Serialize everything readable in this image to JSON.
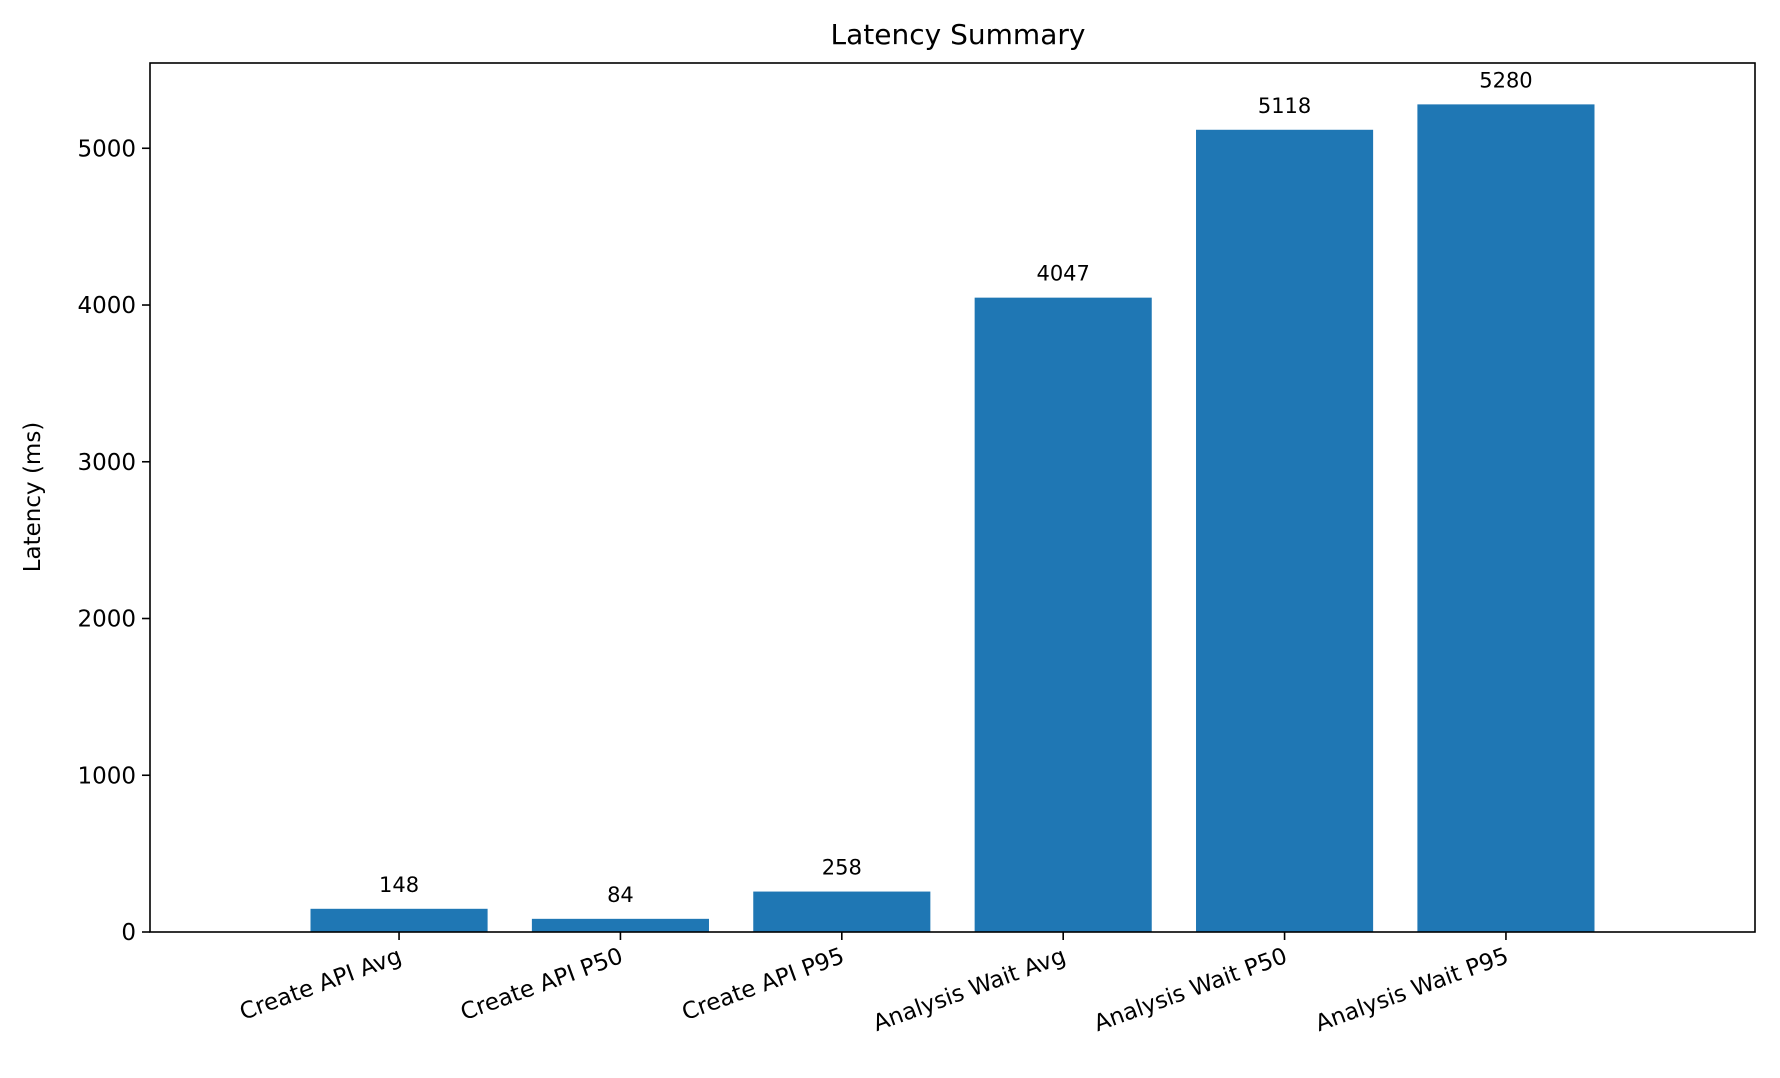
{
  "chart_data": {
    "type": "bar",
    "title": "Latency Summary",
    "xlabel": "",
    "ylabel": "Latency (ms)",
    "categories": [
      "Create API Avg",
      "Create API P50",
      "Create API P95",
      "Analysis Wait Avg",
      "Analysis Wait P50",
      "Analysis Wait P95"
    ],
    "values": [
      148,
      84,
      258,
      4047,
      5118,
      5280
    ],
    "data_labels": [
      "148",
      "84",
      "258",
      "4047",
      "5118",
      "5280"
    ],
    "ylim": [
      0,
      5544
    ],
    "yticks": [
      0,
      1000,
      2000,
      3000,
      4000,
      5000
    ],
    "ytick_labels": [
      "0",
      "1000",
      "2000",
      "3000",
      "4000",
      "5000"
    ],
    "grid": false,
    "legend": "none",
    "bar_color": "#1f77b4"
  }
}
